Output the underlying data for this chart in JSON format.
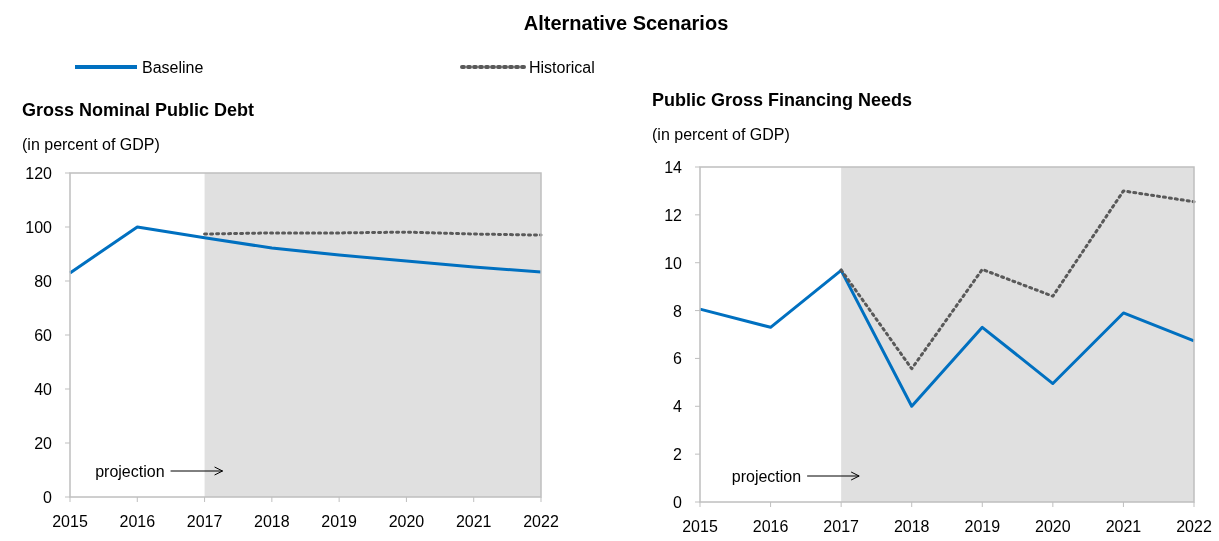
{
  "chart_data": [
    {
      "type": "line",
      "title": "Alternative Scenarios",
      "subtitle": "Gross Nominal Public Debt",
      "ylabel": "(in percent of GDP)",
      "x": [
        2015,
        2016,
        2017,
        2018,
        2019,
        2020,
        2021,
        2022
      ],
      "xlim": [
        2015,
        2022
      ],
      "xticks": [
        2015,
        2016,
        2017,
        2018,
        2019,
        2020,
        2021,
        2022
      ],
      "ylim": [
        0,
        120
      ],
      "yticks": [
        0,
        20,
        40,
        60,
        80,
        100,
        120
      ],
      "grid": false,
      "legend": "top",
      "marker": "none",
      "annotations": [
        "projection"
      ],
      "bands": [
        {
          "axis": "x",
          "from": 2017,
          "to": 2022,
          "color": "#e0e0e0"
        }
      ],
      "series": [
        {
          "name": "Baseline",
          "color": "#0070c0",
          "line_style": "solid",
          "values": [
            83,
            100,
            96,
            92.2,
            89.6,
            87.4,
            85.2,
            83.3
          ]
        },
        {
          "name": "Historical",
          "color": "#595959",
          "line_style": "dotted",
          "x": [
            2017,
            2018,
            2019,
            2020,
            2021,
            2022
          ],
          "values": [
            97.4,
            97.8,
            97.8,
            98.1,
            97.4,
            97
          ]
        }
      ]
    },
    {
      "type": "line",
      "subtitle": "Public Gross Financing Needs",
      "ylabel": "(in percent of GDP)",
      "x": [
        2015,
        2016,
        2017,
        2018,
        2019,
        2020,
        2021,
        2022
      ],
      "xlim": [
        2015,
        2022
      ],
      "xticks": [
        2015,
        2016,
        2017,
        2018,
        2019,
        2020,
        2021,
        2022
      ],
      "ylim": [
        0,
        14
      ],
      "yticks": [
        0,
        2,
        4,
        6,
        8,
        10,
        12,
        14
      ],
      "grid": false,
      "marker": "none",
      "annotations": [
        "projection"
      ],
      "bands": [
        {
          "axis": "x",
          "from": 2017,
          "to": 2022,
          "color": "#e0e0e0"
        }
      ],
      "series": [
        {
          "color": "#0070c0",
          "line_style": "solid",
          "values": [
            8.06,
            7.3,
            9.68,
            4.0,
            7.3,
            4.95,
            7.9,
            6.73
          ]
        },
        {
          "color": "#595959",
          "line_style": "dotted",
          "x": [
            2017,
            2018,
            2019,
            2020,
            2021,
            2022
          ],
          "values": [
            9.7,
            5.57,
            9.72,
            8.6,
            13.0,
            12.55
          ]
        }
      ]
    }
  ]
}
